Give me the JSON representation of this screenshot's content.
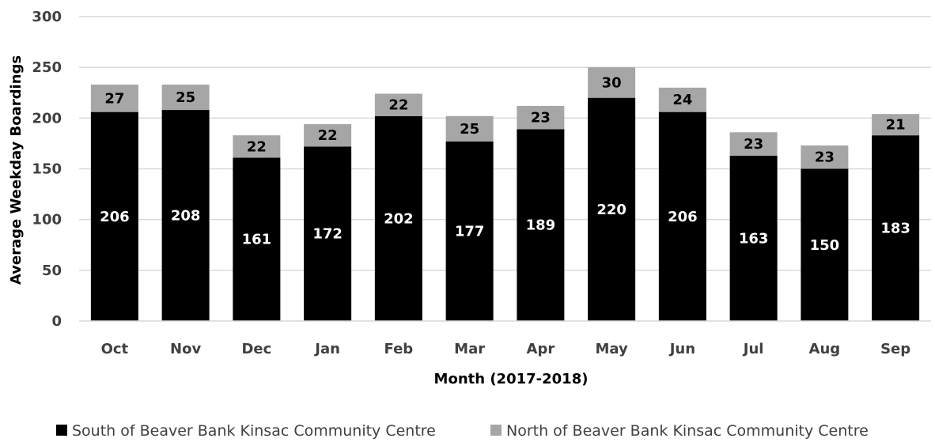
{
  "chart_data": {
    "type": "bar",
    "stacked": true,
    "categories": [
      "Oct",
      "Nov",
      "Dec",
      "Jan",
      "Feb",
      "Mar",
      "Apr",
      "May",
      "Jun",
      "Jul",
      "Aug",
      "Sep"
    ],
    "series": [
      {
        "name": "South of Beaver Bank Kinsac Community Centre",
        "values": [
          206,
          208,
          161,
          172,
          202,
          177,
          189,
          220,
          206,
          163,
          150,
          183
        ],
        "color": "#000000"
      },
      {
        "name": "North of Beaver Bank Kinsac Community Centre",
        "values": [
          27,
          25,
          22,
          22,
          22,
          25,
          23,
          30,
          24,
          23,
          23,
          21
        ],
        "color": "#a6a6a6"
      }
    ],
    "xlabel": "Month (2017-2018)",
    "ylabel": "Average Weekday Boardings",
    "ylim": [
      0,
      300
    ],
    "yticks": [
      "0",
      "50",
      "100",
      "150",
      "200",
      "250",
      "300"
    ],
    "grid": true,
    "legend_position": "bottom"
  }
}
